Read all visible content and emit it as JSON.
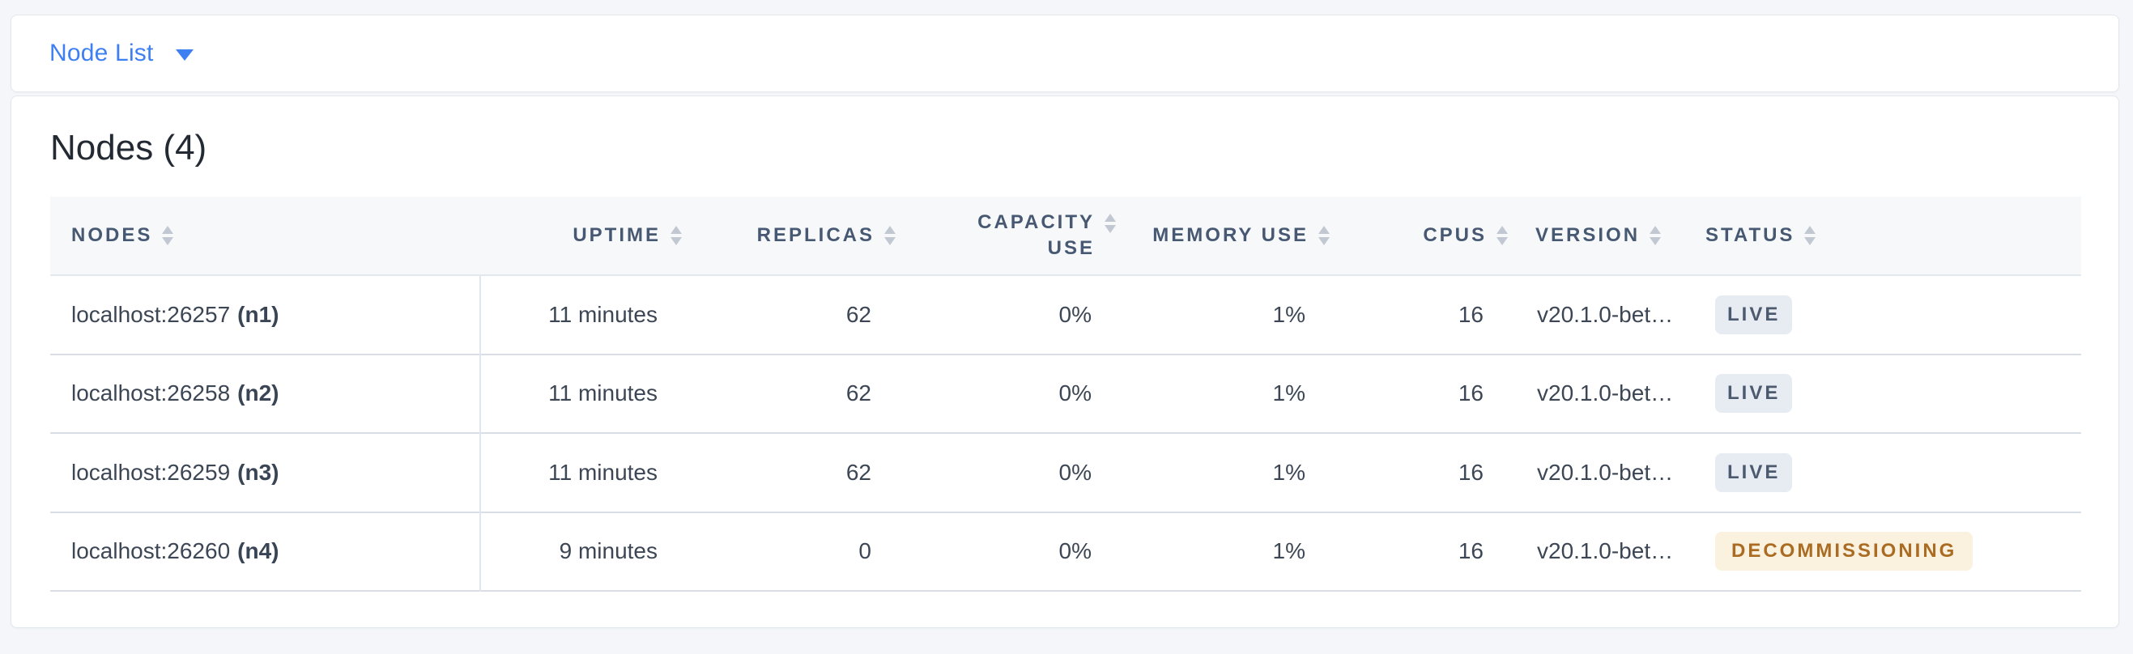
{
  "selector": {
    "label": "Node List"
  },
  "main": {
    "title": "Nodes (4)",
    "table": {
      "columns": [
        {
          "label": "NODES",
          "align": "left"
        },
        {
          "label": "UPTIME",
          "align": "right"
        },
        {
          "label": "REPLICAS",
          "align": "right"
        },
        {
          "label": "CAPACITY USE",
          "align": "right"
        },
        {
          "label": "MEMORY USE",
          "align": "right"
        },
        {
          "label": "CPUS",
          "align": "right"
        },
        {
          "label": "VERSION",
          "align": "left"
        },
        {
          "label": "STATUS",
          "align": "left"
        }
      ],
      "rows": [
        {
          "node_address": "localhost:26257",
          "node_id": "(n1)",
          "uptime": "11 minutes",
          "replicas": "62",
          "capacity_use": "0%",
          "memory_use": "1%",
          "cpus": "16",
          "version": "v20.1.0-bet…",
          "status": "LIVE"
        },
        {
          "node_address": "localhost:26258",
          "node_id": "(n2)",
          "uptime": "11 minutes",
          "replicas": "62",
          "capacity_use": "0%",
          "memory_use": "1%",
          "cpus": "16",
          "version": "v20.1.0-bet…",
          "status": "LIVE"
        },
        {
          "node_address": "localhost:26259",
          "node_id": "(n3)",
          "uptime": "11 minutes",
          "replicas": "62",
          "capacity_use": "0%",
          "memory_use": "1%",
          "cpus": "16",
          "version": "v20.1.0-bet…",
          "status": "LIVE"
        },
        {
          "node_address": "localhost:26260",
          "node_id": "(n4)",
          "uptime": "9 minutes",
          "replicas": "0",
          "capacity_use": "0%",
          "memory_use": "1%",
          "cpus": "16",
          "version": "v20.1.0-bet…",
          "status": "DECOMMISSIONING"
        }
      ]
    }
  },
  "colors": {
    "accent_blue": "#3e7ff2",
    "page_background": "#f4f6f9",
    "header_text": "#475872",
    "cell_text": "#3c4654",
    "badge_live_bg": "#e7ebf2",
    "badge_live_text": "#4c5a6f",
    "badge_decommissioning_bg": "#faf2df",
    "badge_decommissioning_text": "#aa6b22"
  }
}
